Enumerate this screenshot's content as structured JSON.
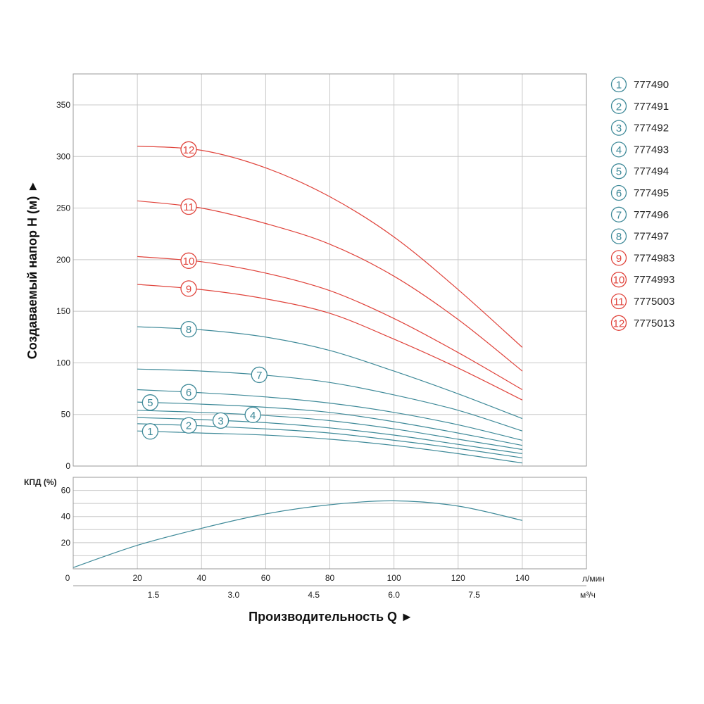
{
  "colors": {
    "teal": "#3f8a99",
    "red": "#e0443c",
    "grid": "#c8c8c8",
    "frame": "#999999"
  },
  "chart_data": [
    {
      "type": "line",
      "title": "",
      "ylabel": "Создаваемый напор H (м)",
      "ylabel_arrow": "►",
      "xlim": [
        0,
        160
      ],
      "ylim": [
        0,
        380
      ],
      "yticks": [
        0,
        50,
        100,
        150,
        200,
        250,
        300,
        350
      ],
      "grid": true,
      "legend": "right",
      "x": [
        20,
        40,
        60,
        80,
        100,
        120,
        140
      ],
      "series": [
        {
          "marker": "1",
          "name": "777490",
          "color": "teal",
          "label_x": 24,
          "values": [
            34,
            32,
            30,
            26,
            20,
            12,
            3
          ]
        },
        {
          "marker": "2",
          "name": "777491",
          "color": "teal",
          "label_x": 36,
          "values": [
            41,
            39,
            36,
            32,
            25,
            17,
            8
          ]
        },
        {
          "marker": "3",
          "name": "777492",
          "color": "teal",
          "label_x": 46,
          "values": [
            47,
            45,
            42,
            37,
            30,
            21,
            12
          ]
        },
        {
          "marker": "4",
          "name": "777493",
          "color": "teal",
          "label_x": 56,
          "values": [
            54,
            52,
            49,
            44,
            36,
            26,
            16
          ]
        },
        {
          "marker": "5",
          "name": "777494",
          "color": "teal",
          "label_x": 24,
          "values": [
            62,
            60,
            57,
            52,
            43,
            32,
            20
          ]
        },
        {
          "marker": "6",
          "name": "777495",
          "color": "teal",
          "label_x": 36,
          "values": [
            74,
            71,
            67,
            61,
            52,
            40,
            25
          ]
        },
        {
          "marker": "7",
          "name": "777496",
          "color": "teal",
          "label_x": 58,
          "values": [
            94,
            92,
            88,
            81,
            69,
            54,
            34
          ]
        },
        {
          "marker": "8",
          "name": "777497",
          "color": "teal",
          "label_x": 36,
          "values": [
            135,
            132,
            125,
            112,
            92,
            70,
            46
          ]
        },
        {
          "marker": "9",
          "name": "7774983",
          "color": "red",
          "label_x": 36,
          "values": [
            176,
            171,
            162,
            148,
            123,
            95,
            64
          ]
        },
        {
          "marker": "10",
          "name": "7774993",
          "color": "red",
          "label_x": 36,
          "values": [
            203,
            198,
            187,
            170,
            143,
            110,
            74
          ]
        },
        {
          "marker": "11",
          "name": "7775003",
          "color": "red",
          "label_x": 36,
          "values": [
            257,
            250,
            235,
            215,
            184,
            142,
            92
          ]
        },
        {
          "marker": "12",
          "name": "7775013",
          "color": "red",
          "label_x": 36,
          "values": [
            310,
            306,
            289,
            261,
            222,
            171,
            115
          ]
        }
      ]
    },
    {
      "type": "line",
      "title": "",
      "ylabel": "КПД (%)",
      "xlim": [
        0,
        160
      ],
      "ylim": [
        0,
        70
      ],
      "yticks": [
        20,
        40,
        60
      ],
      "grid": true,
      "x": [
        0,
        20,
        40,
        60,
        80,
        100,
        120,
        140
      ],
      "series": [
        {
          "name": "КПД",
          "color": "teal",
          "values": [
            1,
            18,
            31,
            42,
            49,
            52,
            48,
            37
          ]
        }
      ]
    }
  ],
  "x_axis": {
    "label": "Производительность Q",
    "arrow": "►",
    "unit_primary": "л/мин",
    "unit_secondary": "м³/ч",
    "ticks_primary": [
      0,
      20,
      40,
      60,
      80,
      100,
      120,
      140
    ],
    "ticks_secondary": [
      {
        "value": "1.5",
        "at": 25
      },
      {
        "value": "3.0",
        "at": 50
      },
      {
        "value": "4.5",
        "at": 75
      },
      {
        "value": "6.0",
        "at": 100
      },
      {
        "value": "7.5",
        "at": 125
      }
    ]
  }
}
